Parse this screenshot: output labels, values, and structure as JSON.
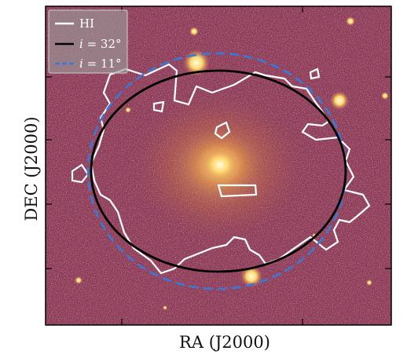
{
  "figure": {
    "xlabel": "RA (J2000)",
    "ylabel": "DEC (J2000)"
  },
  "legend": {
    "items": [
      {
        "label": "HI",
        "color": "#ffffff",
        "style": "solid"
      },
      {
        "label": "i = 32°",
        "prefix": "i",
        "suffix": " = 32°",
        "color": "#000000",
        "style": "solid"
      },
      {
        "label": "i = 11°",
        "prefix": "i",
        "suffix": " = 11°",
        "color": "#3a78d6",
        "style": "dashed"
      }
    ]
  },
  "colors": {
    "background": "#8e3e5e",
    "galaxy_core": "#fff3b0",
    "hi_contour": "#ffffff",
    "ellipse_32": "#000000",
    "ellipse_11": "#3a78d6"
  }
}
